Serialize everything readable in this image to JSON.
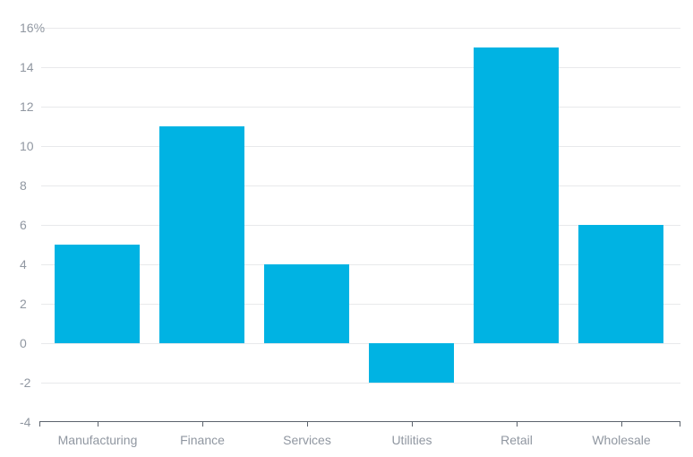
{
  "chart_data": {
    "type": "bar",
    "categories": [
      "Manufacturing",
      "Finance",
      "Services",
      "Utilities",
      "Retail",
      "Wholesale"
    ],
    "values": [
      5,
      11,
      4,
      -2,
      15,
      6
    ],
    "title": "",
    "xlabel": "",
    "ylabel": "",
    "ylim": [
      -4,
      16
    ],
    "ytick_step": 2,
    "ytick_labels": [
      "16%",
      "14",
      "12",
      "10",
      "8",
      "6",
      "4",
      "2",
      "0",
      "-2",
      "-4"
    ],
    "grid": true,
    "legend": false,
    "colors": {
      "bar": "#00b3e3",
      "grid": "#e8e9eb",
      "axis": "#5c636d",
      "tick_label": "#9097a1",
      "background": "#ffffff"
    }
  }
}
